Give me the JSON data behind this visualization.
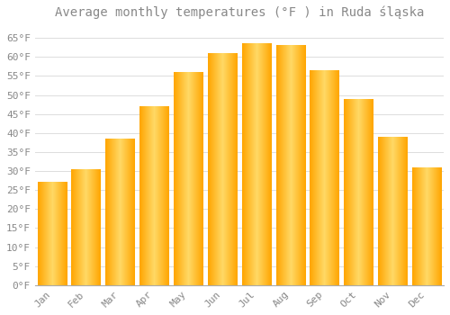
{
  "title": "Average monthly temperatures (°F ) in Ruda śląska",
  "months": [
    "Jan",
    "Feb",
    "Mar",
    "Apr",
    "May",
    "Jun",
    "Jul",
    "Aug",
    "Sep",
    "Oct",
    "Nov",
    "Dec"
  ],
  "values": [
    27,
    30.5,
    38.5,
    47,
    56,
    61,
    63.5,
    63,
    56.5,
    49,
    39,
    31
  ],
  "bar_color_center": "#FFD966",
  "bar_color_edge": "#FFA500",
  "background_color": "#FFFFFF",
  "grid_color": "#DDDDDD",
  "text_color": "#888888",
  "ylim": [
    0,
    68
  ],
  "yticks": [
    0,
    5,
    10,
    15,
    20,
    25,
    30,
    35,
    40,
    45,
    50,
    55,
    60,
    65
  ],
  "title_fontsize": 10,
  "tick_fontsize": 8,
  "bar_width": 0.85
}
